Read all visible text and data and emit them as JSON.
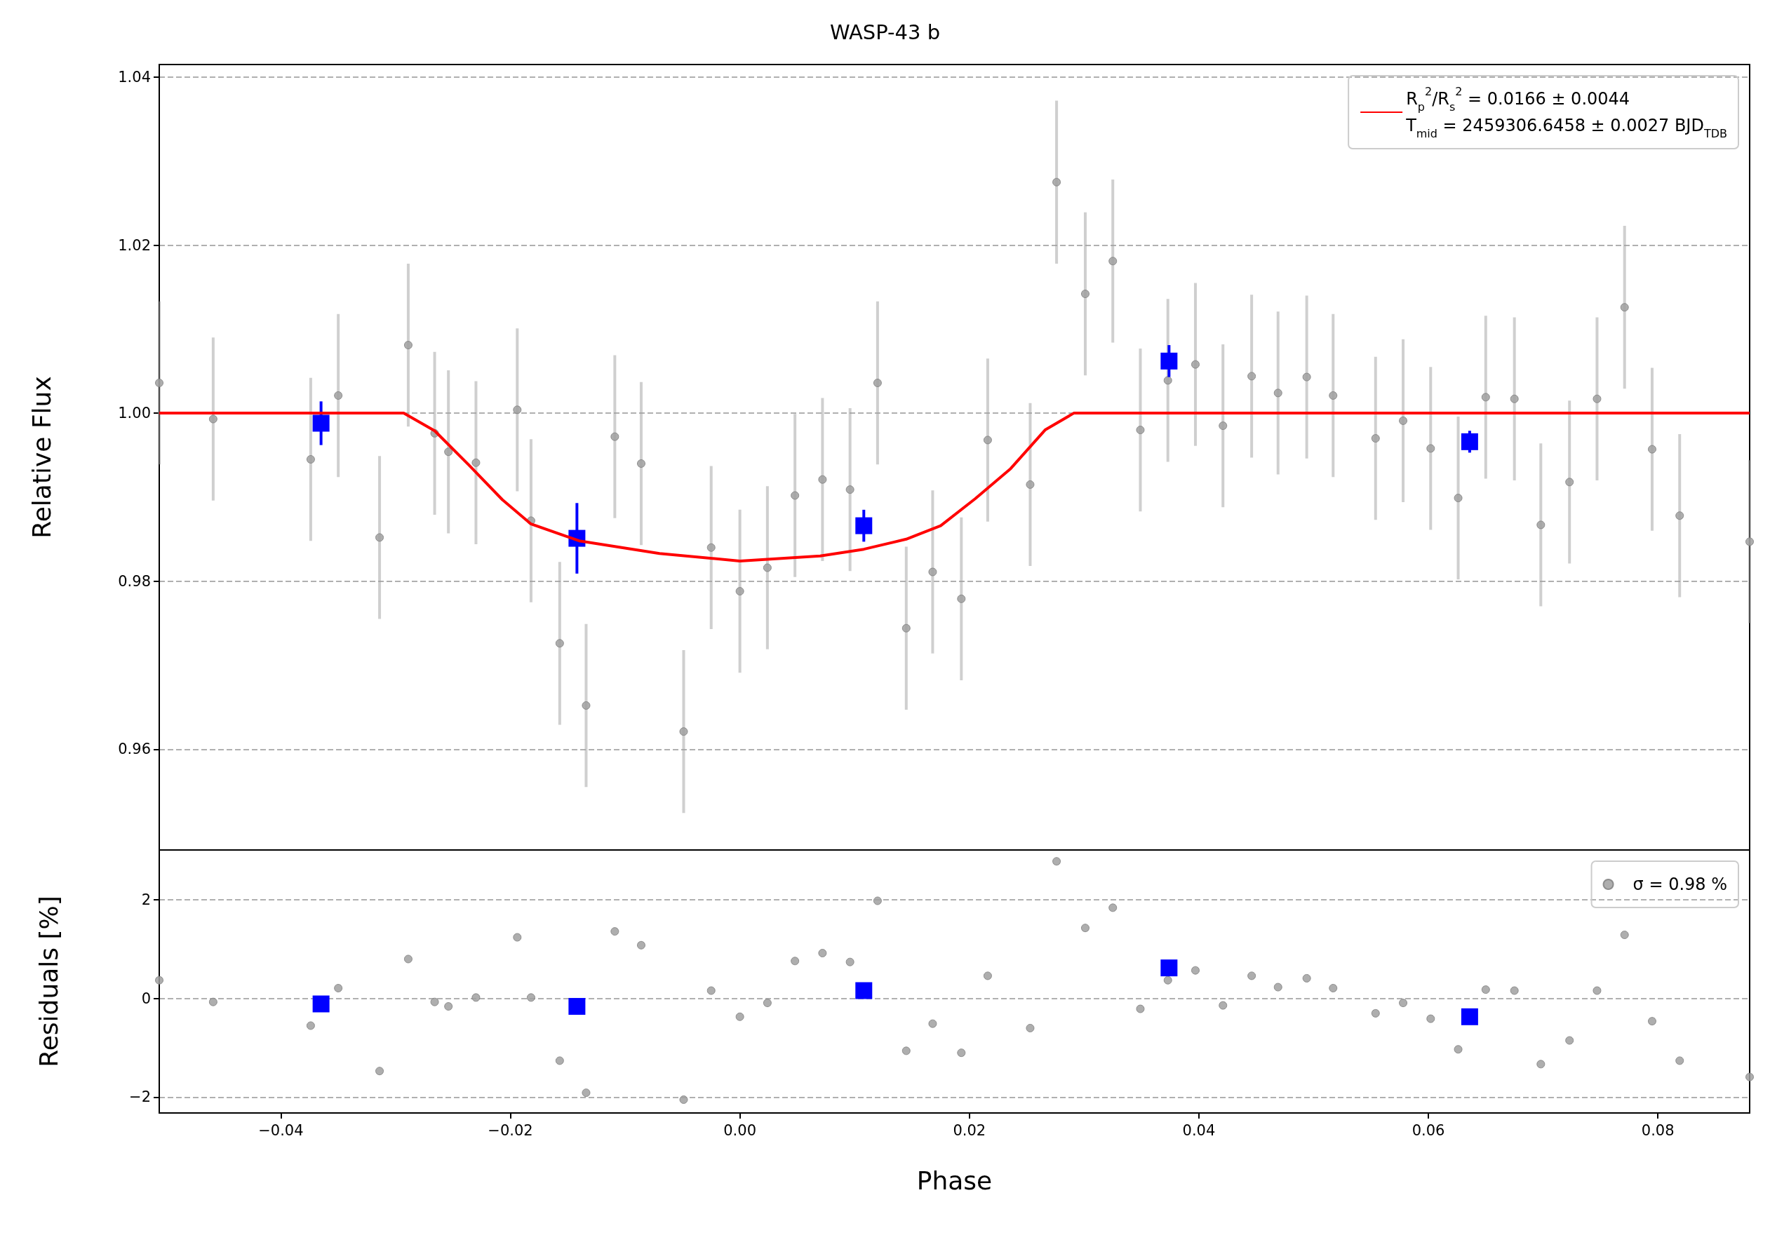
{
  "chart_data": [
    {
      "type": "scatter",
      "title": "WASP-43 b",
      "ylabel": "Relative Flux",
      "xlim": [
        -0.0506,
        0.088
      ],
      "xticks": [
        {
          "value": -0.04,
          "label": null
        },
        {
          "value": -0.02,
          "label": null
        },
        {
          "value": 0,
          "label": null
        },
        {
          "value": 0.02,
          "label": null
        },
        {
          "value": 0.04,
          "label": null
        },
        {
          "value": 0.06,
          "label": null
        },
        {
          "value": 0.08,
          "label": null
        }
      ],
      "ylim": [
        0.948,
        1.0415
      ],
      "yticks": [
        0.96,
        0.98,
        {
          "value": 1,
          "label": "1.00"
        },
        1.02,
        1.04
      ],
      "tick_labels": "y",
      "grid": "y",
      "legend": "top right",
      "series": [
        {
          "color": "#a0a0a0",
          "marker": "circle",
          "x": [
            -0.0506,
            -0.0459,
            -0.0374,
            -0.035,
            -0.0314,
            -0.0289,
            -0.0266,
            -0.0254,
            -0.023,
            -0.0194,
            -0.0182,
            -0.0157,
            -0.0134,
            -0.0109,
            -0.0086,
            -0.0049,
            -0.0025,
            0,
            0.0024,
            0.0048,
            0.0072,
            0.0096,
            0.012,
            0.0145,
            0.0168,
            0.0193,
            0.0216,
            0.0253,
            0.0276,
            0.0301,
            0.0325,
            0.0349,
            0.0373,
            0.0397,
            0.0421,
            0.0446,
            0.0469,
            0.0494,
            0.0517,
            0.0554,
            0.0578,
            0.0602,
            0.0626,
            0.065,
            0.0675,
            0.0698,
            0.0723,
            0.0747,
            0.0771,
            0.0795,
            0.0819,
            0.088
          ],
          "values": [
            1.0036,
            0.9993,
            0.9945,
            1.0021,
            0.9852,
            1.0081,
            0.9976,
            0.9954,
            0.9941,
            1.0004,
            0.9872,
            0.9726,
            0.9652,
            0.9972,
            0.994,
            0.9621,
            0.984,
            0.9788,
            0.9816,
            0.9902,
            0.9921,
            0.9909,
            1.0036,
            0.9744,
            0.9811,
            0.9779,
            0.9968,
            0.9915,
            1.0275,
            1.0142,
            1.0181,
            0.998,
            1.0039,
            1.0058,
            0.9985,
            1.0044,
            1.0024,
            1.0043,
            1.0021,
            0.997,
            0.9991,
            0.9958,
            0.9899,
            1.0019,
            1.0017,
            0.9867,
            0.9918,
            1.0017,
            1.0126,
            0.9957,
            0.9878,
            0.9847
          ],
          "errors": [
            0.0097,
            0.0097,
            0.0097,
            0.0097,
            0.0097,
            0.0097,
            0.0097,
            0.0097,
            0.0097,
            0.0097,
            0.0097,
            0.0097,
            0.0097,
            0.0097,
            0.0097,
            0.0097,
            0.0097,
            0.0097,
            0.0097,
            0.0097,
            0.0097,
            0.0097,
            0.0097,
            0.0097,
            0.0097,
            0.0097,
            0.0097,
            0.0097,
            0.0097,
            0.0097,
            0.0097,
            0.0097,
            0.0097,
            0.0097,
            0.0097,
            0.0097,
            0.0097,
            0.0097,
            0.0097,
            0.0097,
            0.0097,
            0.0097,
            0.0097,
            0.0097,
            0.0097,
            0.0097,
            0.0097,
            0.0097,
            0.0097,
            0.0097,
            0.0097,
            0.0097
          ]
        },
        {
          "color": "#0000ff",
          "marker": "square",
          "x": [
            -0.0365,
            -0.0142,
            0.0108,
            0.0374,
            0.0636
          ],
          "values": [
            0.9988,
            0.9851,
            0.9866,
            1.0062,
            0.9966
          ],
          "errors": [
            0.0026,
            0.0042,
            0.0019,
            0.0019,
            0.0013
          ]
        },
        {
          "type": "line",
          "name": "R$_{p}$$^{2}$/R$_{s}$$^{2}$ = 0.0166 ± 0.0044\nT$_{mid}$ = 2459306.6458 ± 0.0027 BJD$_{TDB}$",
          "color": "#ff0000",
          "marker": "none",
          "x": [
            -0.0506,
            -0.0293,
            -0.0266,
            -0.0236,
            -0.0207,
            -0.0182,
            -0.014,
            -0.007,
            0,
            0.007,
            0.0108,
            0.0145,
            0.0175,
            0.0205,
            0.0236,
            0.0266,
            0.0291,
            0.088
          ],
          "values": [
            1,
            1,
            0.9979,
            0.9938,
            0.9897,
            0.9868,
            0.9848,
            0.9833,
            0.9824,
            0.983,
            0.9838,
            0.985,
            0.9866,
            0.9898,
            0.9934,
            0.998,
            1,
            1
          ]
        }
      ]
    },
    {
      "type": "scatter",
      "xlabel": "Phase",
      "ylabel": "Residuals [%]",
      "xlim": [
        -0.0506,
        0.088
      ],
      "xticks": [
        {
          "value": -0.04,
          "label": "−0.04"
        },
        {
          "value": -0.02,
          "label": "−0.02"
        },
        {
          "value": 0,
          "label": "0.00"
        },
        0.02,
        0.04,
        0.06,
        0.08
      ],
      "ylim": [
        -2.32,
        3.01
      ],
      "yticks": [
        {
          "value": -2,
          "label": "−2"
        },
        0,
        2
      ],
      "grid": "y",
      "legend": "top right",
      "series": [
        {
          "name": "σ = 0.98 %",
          "color": "#a0a0a0",
          "marker": "circle",
          "x": [
            -0.0506,
            -0.0459,
            -0.0374,
            -0.035,
            -0.0314,
            -0.0289,
            -0.0266,
            -0.0254,
            -0.023,
            -0.0194,
            -0.0182,
            -0.0157,
            -0.0134,
            -0.0109,
            -0.0086,
            -0.0049,
            -0.0025,
            0,
            0.0024,
            0.0048,
            0.0072,
            0.0096,
            0.012,
            0.0145,
            0.0168,
            0.0193,
            0.0216,
            0.0253,
            0.0276,
            0.0301,
            0.0325,
            0.0349,
            0.0373,
            0.0397,
            0.0421,
            0.0446,
            0.0469,
            0.0494,
            0.0517,
            0.0554,
            0.0578,
            0.0602,
            0.0626,
            0.065,
            0.0675,
            0.0698,
            0.0723,
            0.0747,
            0.0771,
            0.0795,
            0.0819,
            0.088
          ],
          "values": [
            0.37,
            -0.07,
            -0.55,
            0.21,
            -1.47,
            0.8,
            -0.07,
            -0.16,
            0.02,
            1.24,
            0.02,
            -1.26,
            -1.91,
            1.36,
            1.08,
            -2.05,
            0.16,
            -0.37,
            -0.09,
            0.76,
            0.92,
            0.74,
            1.98,
            -1.06,
            -0.51,
            -1.1,
            0.46,
            -0.6,
            2.78,
            1.43,
            1.84,
            -0.21,
            0.37,
            0.57,
            -0.14,
            0.46,
            0.23,
            0.41,
            0.21,
            -0.3,
            -0.09,
            -0.41,
            -1.03,
            0.18,
            0.16,
            -1.33,
            -0.85,
            0.16,
            1.29,
            -0.46,
            -1.26,
            -1.59
          ]
        },
        {
          "color": "#0000ff",
          "marker": "square",
          "x": [
            -0.0365,
            -0.0142,
            0.0108,
            0.0374,
            0.0636
          ],
          "values": [
            -0.11,
            -0.16,
            0.16,
            0.62,
            -0.37
          ]
        }
      ]
    }
  ]
}
